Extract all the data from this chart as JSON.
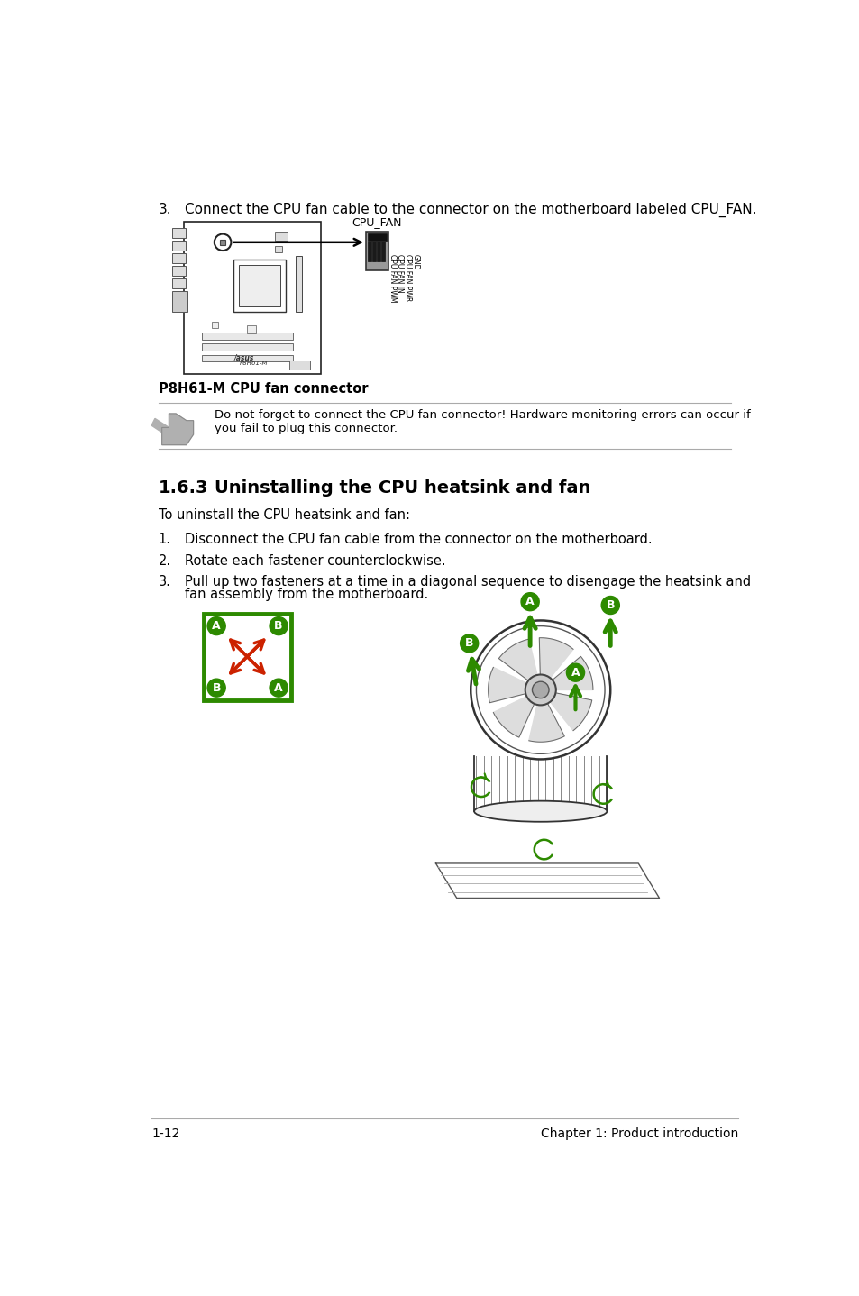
{
  "page_number": "1-12",
  "chapter": "Chapter 1: Product introduction",
  "cpu_fan_label": "CPU_FAN",
  "caption": "P8H61-M CPU fan connector",
  "note_text_line1": "Do not forget to connect the CPU fan connector! Hardware monitoring errors can occur if",
  "note_text_line2": "you fail to plug this connector.",
  "section_number": "1.6.3",
  "section_title": "Uninstalling the CPU heatsink and fan",
  "intro_text": "To uninstall the CPU heatsink and fan:",
  "step1": "Disconnect the CPU fan cable from the connector on the motherboard.",
  "step2": "Rotate each fastener counterclockwise.",
  "step3a": "Pull up two fasteners at a time in a diagonal sequence to disengage the heatsink and",
  "step3b": "fan assembly from the motherboard.",
  "bg_color": "#ffffff",
  "text_color": "#000000",
  "green_color": "#2d8a00",
  "red_color": "#cc2200",
  "step3_top": "3.",
  "step3_text_full": "Connect the CPU fan cable to the connector on the motherboard labeled CPU_FAN.",
  "pin_labels": [
    "CPU FAN PWM",
    "CPU FAN IN",
    "CPU FAN PWR",
    "GND"
  ]
}
